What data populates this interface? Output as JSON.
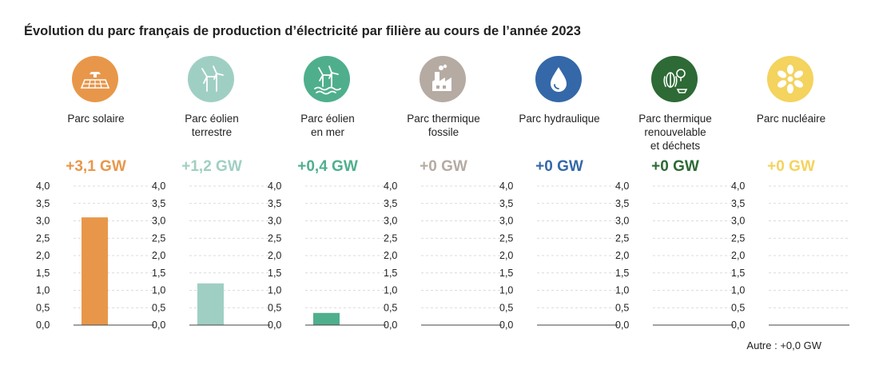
{
  "title": "Évolution du parc français de production d’électricité par filière au cours de l’année 2023",
  "other_note": "Autre : +0,0 GW",
  "chart_data": {
    "type": "bar",
    "ylim": [
      0,
      4
    ],
    "yticks": [
      "0,0",
      "0,5",
      "1,0",
      "1,5",
      "2,0",
      "2,5",
      "3,0",
      "3,5",
      "4,0"
    ],
    "grid": true,
    "panels": [
      {
        "label": "Parc solaire",
        "value_label": "+3,1 GW",
        "value": 3.1,
        "color": "#E8974A",
        "icon": "solar-panel-icon"
      },
      {
        "label": "Parc éolien\nterrestre",
        "value_label": "+1,2 GW",
        "value": 1.2,
        "color": "#9FCFC3",
        "icon": "wind-turbine-icon"
      },
      {
        "label": "Parc éolien\nen mer",
        "value_label": "+0,4 GW",
        "value": 0.35,
        "color": "#4FAF8C",
        "icon": "offshore-wind-icon"
      },
      {
        "label": "Parc thermique\nfossile",
        "value_label": "+0 GW",
        "value": 0,
        "color": "#B5ABA3",
        "icon": "factory-icon"
      },
      {
        "label": "Parc hydraulique",
        "value_label": "+0 GW",
        "value": 0,
        "color": "#3468A8",
        "icon": "water-drop-icon"
      },
      {
        "label": "Parc thermique\nrenouvelable\net déchets",
        "value_label": "+0 GW",
        "value": 0,
        "color": "#2D6A35",
        "icon": "biomass-icon"
      },
      {
        "label": "Parc nucléaire",
        "value_label": "+0 GW",
        "value": 0,
        "color": "#F4D35E",
        "icon": "atom-icon"
      }
    ]
  }
}
